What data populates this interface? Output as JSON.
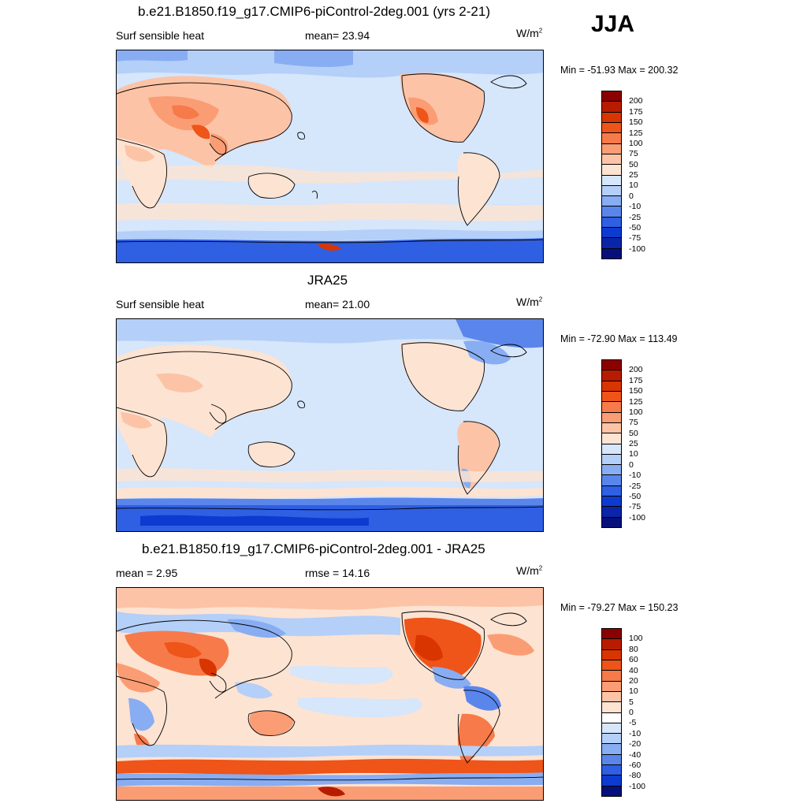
{
  "season": "JJA",
  "panels": [
    {
      "title": "b.e21.B1850.f19_g17.CMIP6-piControl-2deg.001 (yrs 2-21)",
      "left_label": "Surf sensible heat",
      "mid_label": "mean=  23.94",
      "units": "W/m",
      "units_sup": "2",
      "minmax": "Min = -51.93 Max = 200.32",
      "colorbar": {
        "labels": [
          "200",
          "175",
          "150",
          "125",
          "100",
          "75",
          "50",
          "25",
          "10",
          "0",
          "-10",
          "-25",
          "-50",
          "-75",
          "-100"
        ],
        "colors": [
          "#8b0000",
          "#b81c00",
          "#d93500",
          "#ef5419",
          "#f77a4a",
          "#fb9d74",
          "#fcc3a6",
          "#fde3d2",
          "#d6e6fb",
          "#b4cff8",
          "#88adf2",
          "#5a86ec",
          "#2f5fe3",
          "#0d3bd0",
          "#0a25a8",
          "#07107a"
        ]
      }
    },
    {
      "title": "JRA25",
      "left_label": "Surf sensible heat",
      "mid_label": "mean=  21.00",
      "units": "W/m",
      "units_sup": "2",
      "minmax": "Min = -72.90 Max = 113.49",
      "colorbar": {
        "labels": [
          "200",
          "175",
          "150",
          "125",
          "100",
          "75",
          "50",
          "25",
          "10",
          "0",
          "-10",
          "-25",
          "-50",
          "-75",
          "-100"
        ],
        "colors": [
          "#8b0000",
          "#b81c00",
          "#d93500",
          "#ef5419",
          "#f77a4a",
          "#fb9d74",
          "#fcc3a6",
          "#fde3d2",
          "#d6e6fb",
          "#b4cff8",
          "#88adf2",
          "#5a86ec",
          "#2f5fe3",
          "#0d3bd0",
          "#0a25a8",
          "#07107a"
        ]
      }
    },
    {
      "title": "b.e21.B1850.f19_g17.CMIP6-piControl-2deg.001 - JRA25",
      "left_label": "mean =   2.95",
      "mid_label": "rmse =  14.16",
      "units": "W/m",
      "units_sup": "2",
      "minmax": "Min = -79.27 Max = 150.23",
      "colorbar": {
        "labels": [
          "100",
          "80",
          "60",
          "40",
          "20",
          "10",
          "5",
          "0",
          "-5",
          "-10",
          "-20",
          "-40",
          "-60",
          "-80",
          "-100"
        ],
        "colors": [
          "#8b0000",
          "#b81c00",
          "#d93500",
          "#ef5419",
          "#f77a4a",
          "#fb9d74",
          "#fcc3a6",
          "#fde3d2",
          "#ffffff",
          "#d6e6fb",
          "#b4cff8",
          "#88adf2",
          "#5a86ec",
          "#2f5fe3",
          "#0d3bd0",
          "#07107a"
        ]
      }
    }
  ]
}
